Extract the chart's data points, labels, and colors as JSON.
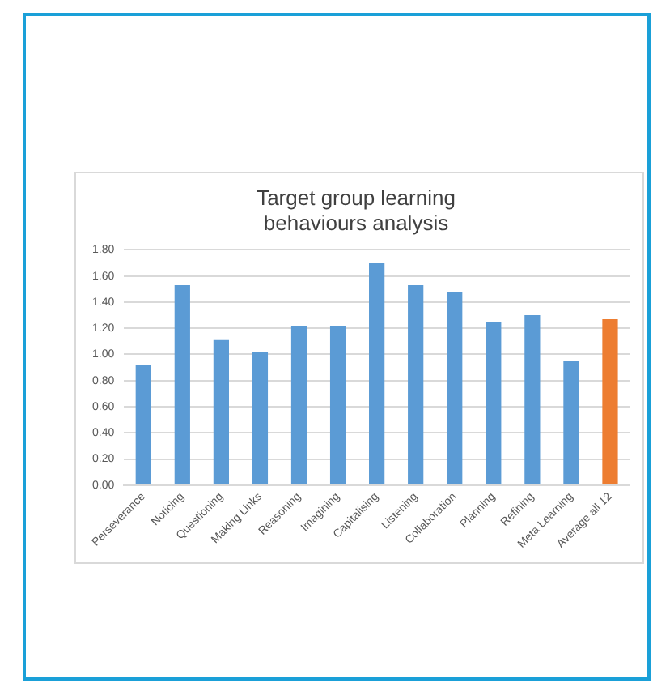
{
  "chart_data": {
    "type": "bar",
    "title": "Target group learning behaviours analysis",
    "categories": [
      "Perseverance",
      "Noticing",
      "Questioning",
      "Making Links",
      "Reasoning",
      "Imagining",
      "Capitalising",
      "Listening",
      "Collaboration",
      "Planning",
      "Refining",
      "Meta Learning",
      "Average all 12"
    ],
    "values": [
      0.92,
      1.53,
      1.11,
      1.02,
      1.22,
      1.22,
      1.7,
      1.53,
      1.48,
      1.25,
      1.3,
      0.95,
      1.27
    ],
    "colors": [
      "#5b9bd5",
      "#5b9bd5",
      "#5b9bd5",
      "#5b9bd5",
      "#5b9bd5",
      "#5b9bd5",
      "#5b9bd5",
      "#5b9bd5",
      "#5b9bd5",
      "#5b9bd5",
      "#5b9bd5",
      "#5b9bd5",
      "#ed7d31"
    ],
    "ylim": [
      0,
      1.8
    ],
    "yticks": [
      {
        "value": 0,
        "label": "0.00"
      },
      {
        "value": 0.2,
        "label": "0.20"
      },
      {
        "value": 0.4,
        "label": "0.40"
      },
      {
        "value": 0.6,
        "label": "0.60"
      },
      {
        "value": 0.8,
        "label": "0.80"
      },
      {
        "value": 1,
        "label": "1.00"
      },
      {
        "value": 1.2,
        "label": "1.20"
      },
      {
        "value": 1.4,
        "label": "1.40"
      },
      {
        "value": 1.6,
        "label": "1.60"
      },
      {
        "value": 1.8,
        "label": "1.80"
      }
    ],
    "grid": "y",
    "legend": false
  }
}
